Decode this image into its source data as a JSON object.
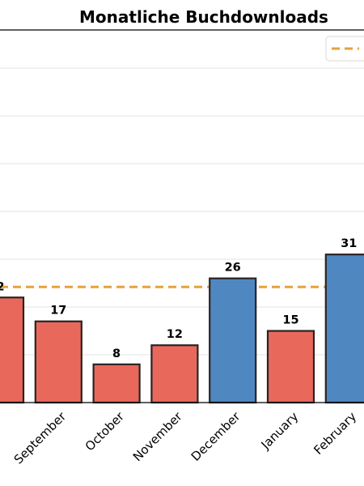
{
  "chart_data": {
    "type": "bar",
    "title": "Monatliche Buchdownloads",
    "xlabel": "",
    "ylabel": "",
    "categories": [
      "September",
      "October",
      "November",
      "December",
      "January",
      "February"
    ],
    "partial_left_value": 22,
    "values": [
      17,
      8,
      12,
      26,
      15,
      31
    ],
    "value_labels": [
      "17",
      "8",
      "12",
      "26",
      "15",
      "31"
    ],
    "partial_left_label": "2",
    "average_line": 24.2,
    "ylim": [
      0,
      78
    ],
    "grid": true,
    "legend": {
      "placement": "top-right"
    },
    "colors": {
      "below_average": "#e8695c",
      "above_average": "#4f88c1",
      "average_line": "#e5a23d",
      "bar_edge": "#2b2323"
    }
  }
}
